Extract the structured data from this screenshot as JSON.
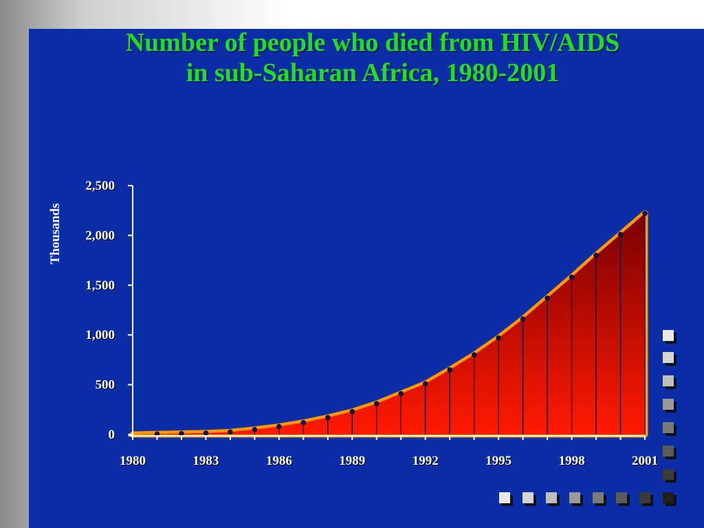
{
  "title_lines": [
    "Number of people who died from HIV/AIDS",
    "in sub-Saharan Africa, 1980-2001"
  ],
  "colors": {
    "background": "#0b2ea6",
    "title": "#22dd22",
    "fill_top": "#7a0000",
    "fill_bottom": "#ff1a00",
    "outline": "#ff9900"
  },
  "chart_data": {
    "type": "area",
    "title": "Number of people who died from HIV/AIDS in sub-Saharan Africa, 1980-2001",
    "xlabel": "",
    "ylabel": "Thousands",
    "ylim": [
      0,
      2500
    ],
    "xlim": [
      1980,
      2001
    ],
    "x_tick_labels": [
      "1980",
      "1983",
      "1986",
      "1989",
      "1992",
      "1995",
      "1998",
      "2001"
    ],
    "y_tick_labels": [
      "0",
      "500",
      "1,000",
      "1,500",
      "2,000",
      "2,500"
    ],
    "x": [
      1981,
      1982,
      1983,
      1984,
      1985,
      1986,
      1987,
      1988,
      1989,
      1990,
      1991,
      1992,
      1993,
      1994,
      1995,
      1996,
      1997,
      1998,
      1999,
      2000,
      2001
    ],
    "values": [
      5,
      10,
      15,
      25,
      50,
      80,
      120,
      170,
      230,
      310,
      410,
      510,
      650,
      800,
      970,
      1160,
      1370,
      1580,
      1800,
      2010,
      2220
    ],
    "grid": false,
    "legend": "none"
  }
}
